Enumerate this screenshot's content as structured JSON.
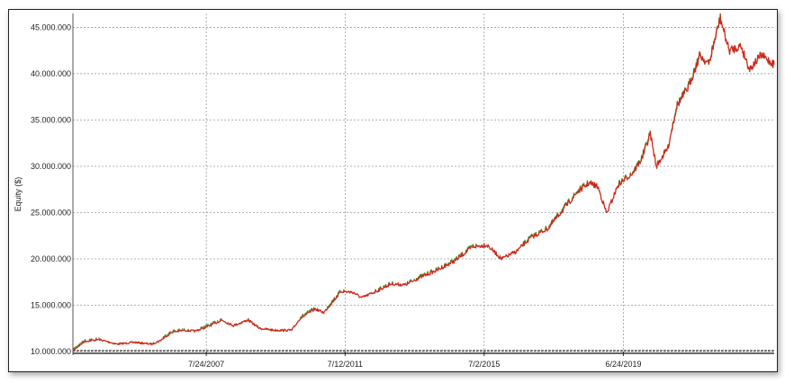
{
  "chart_data": {
    "type": "line",
    "title": "",
    "xlabel": "",
    "ylabel": "Equity ($)",
    "grid": true,
    "legend": "none",
    "ylim": [
      10000000,
      46500000
    ],
    "xlim": [
      "2003-10-01",
      "2023-10-15"
    ],
    "y_ticks": [
      10000000,
      15000000,
      20000000,
      25000000,
      30000000,
      35000000,
      40000000,
      45000000
    ],
    "y_tick_labels": [
      "10.000.000",
      "15.000.000",
      "20.000.000",
      "25.000.000",
      "30.000.000",
      "35.000.000",
      "40.000.000",
      "45.000.000"
    ],
    "x_ticks": [
      "2007-07-24",
      "2011-07-12",
      "2015-07-02",
      "2019-06-24"
    ],
    "x_tick_labels": [
      "7/24/2007",
      "7/12/2011",
      "7/2/2015",
      "6/24/2019"
    ],
    "baseline": 10000000,
    "colors": {
      "line": "#cc2a1a",
      "highs": "#2f8f1f",
      "grid": "#9a9a9a",
      "baseline": "#111111"
    },
    "series": [
      {
        "values": [
          [
            "2003-10-01",
            10100000
          ],
          [
            "2004-02-01",
            11100000
          ],
          [
            "2004-07-01",
            11300000
          ],
          [
            "2005-01-01",
            10800000
          ],
          [
            "2005-07-01",
            11000000
          ],
          [
            "2006-01-01",
            10800000
          ],
          [
            "2006-04-01",
            11200000
          ],
          [
            "2006-08-01",
            12100000
          ],
          [
            "2006-12-01",
            12300000
          ],
          [
            "2007-04-01",
            12200000
          ],
          [
            "2007-09-01",
            12800000
          ],
          [
            "2008-01-01",
            13400000
          ],
          [
            "2008-05-01",
            12800000
          ],
          [
            "2008-10-01",
            13400000
          ],
          [
            "2009-02-01",
            12500000
          ],
          [
            "2009-07-01",
            12300000
          ],
          [
            "2010-01-01",
            12300000
          ],
          [
            "2010-04-01",
            13600000
          ],
          [
            "2010-09-01",
            14600000
          ],
          [
            "2010-12-01",
            14200000
          ],
          [
            "2011-06-01",
            16500000
          ],
          [
            "2011-10-01",
            16400000
          ],
          [
            "2012-01-01",
            15800000
          ],
          [
            "2012-06-01",
            16500000
          ],
          [
            "2012-11-01",
            17300000
          ],
          [
            "2013-04-01",
            17200000
          ],
          [
            "2013-09-01",
            18000000
          ],
          [
            "2014-03-01",
            18800000
          ],
          [
            "2014-09-01",
            19800000
          ],
          [
            "2015-03-01",
            21300000
          ],
          [
            "2015-08-01",
            21500000
          ],
          [
            "2016-01-01",
            20000000
          ],
          [
            "2016-06-01",
            20800000
          ],
          [
            "2016-11-01",
            22300000
          ],
          [
            "2017-05-01",
            23300000
          ],
          [
            "2017-10-01",
            25300000
          ],
          [
            "2018-03-01",
            27200000
          ],
          [
            "2018-07-01",
            28200000
          ],
          [
            "2018-10-01",
            27800000
          ],
          [
            "2019-01-01",
            24900000
          ],
          [
            "2019-05-01",
            28000000
          ],
          [
            "2019-10-01",
            29300000
          ],
          [
            "2020-01-01",
            30800000
          ],
          [
            "2020-04-01",
            33500000
          ],
          [
            "2020-06-01",
            30000000
          ],
          [
            "2020-10-01",
            32000000
          ],
          [
            "2021-01-01",
            36500000
          ],
          [
            "2021-05-01",
            38500000
          ],
          [
            "2021-09-01",
            42000000
          ],
          [
            "2021-12-01",
            41000000
          ],
          [
            "2022-04-01",
            46000000
          ],
          [
            "2022-07-01",
            42500000
          ],
          [
            "2022-11-01",
            43000000
          ],
          [
            "2023-02-01",
            40500000
          ],
          [
            "2023-06-01",
            42000000
          ],
          [
            "2023-10-15",
            41000000
          ]
        ]
      }
    ]
  }
}
